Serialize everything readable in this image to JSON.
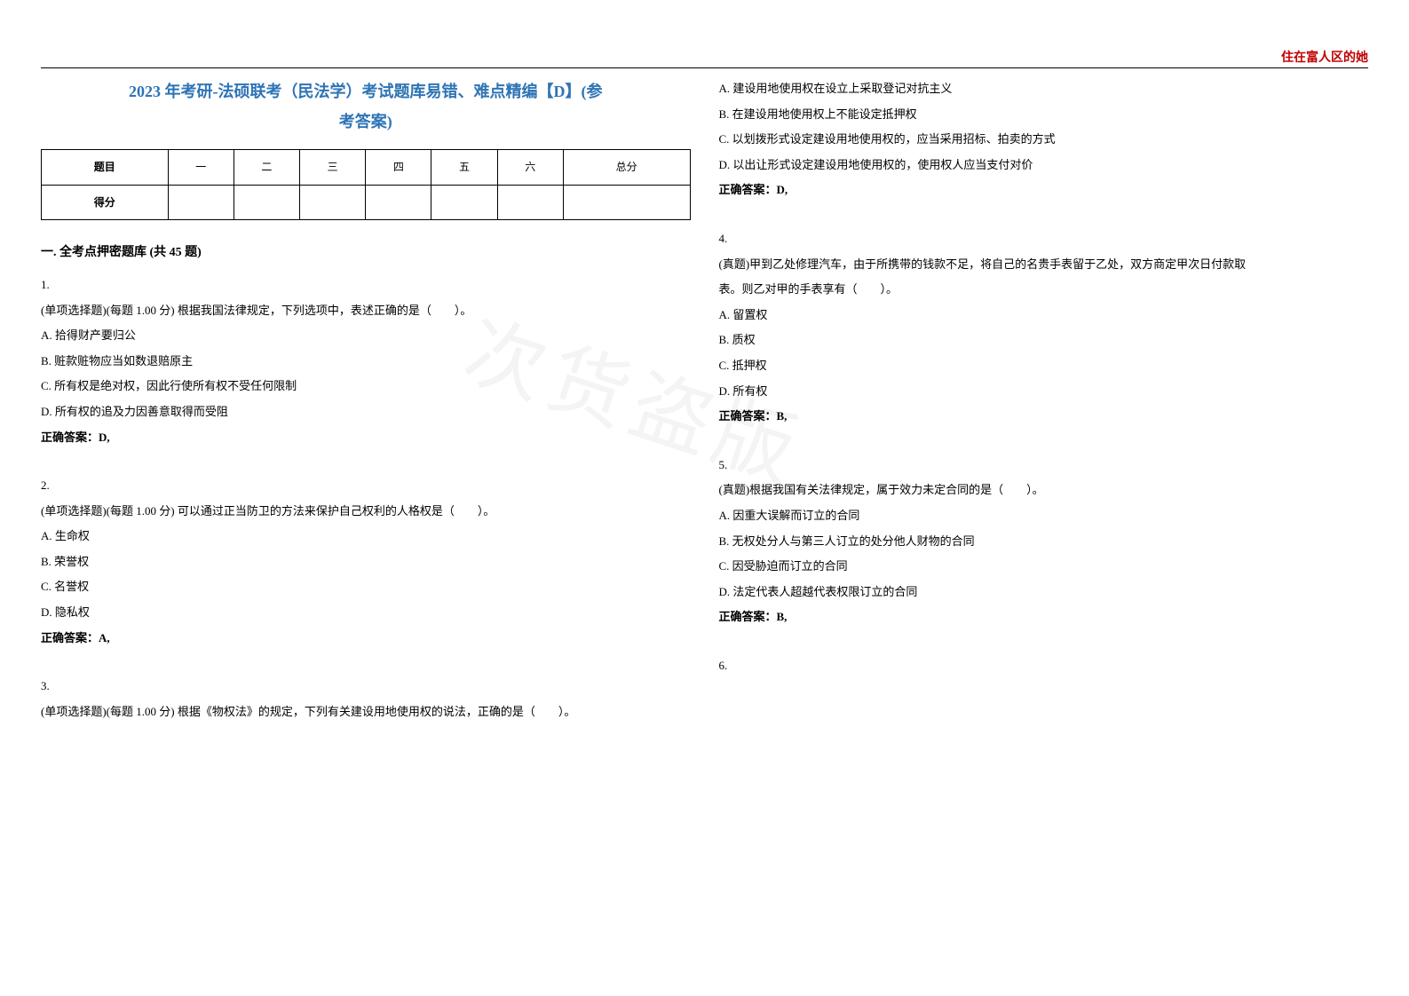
{
  "header_label": "住在富人区的她",
  "title_line1": "2023 年考研-法硕联考（民法学）考试题库易错、难点精编【D】(参",
  "title_line2": "考答案)",
  "score_table": {
    "row1": [
      "题目",
      "一",
      "二",
      "三",
      "四",
      "五",
      "六",
      "总分"
    ],
    "row2_head": "得分"
  },
  "section1_heading": "一. 全考点押密题库 (共 45 题)",
  "q1": {
    "num": "1.",
    "stem": "(单项选择题)(每题 1.00 分) 根据我国法律规定，下列选项中，表述正确的是（　　）。",
    "A": "A. 拾得财产要归公",
    "B": "B. 赃款赃物应当如数退赔原主",
    "C": "C. 所有权是绝对权，因此行使所有权不受任何限制",
    "D": "D. 所有权的追及力因善意取得而受阻",
    "ans": "正确答案：D,"
  },
  "q2": {
    "num": "2.",
    "stem": "(单项选择题)(每题 1.00 分) 可以通过正当防卫的方法来保护自己权利的人格权是（　　）。",
    "A": "A. 生命权",
    "B": "B. 荣誉权",
    "C": "C. 名誉权",
    "D": "D. 隐私权",
    "ans": "正确答案：A,"
  },
  "q3": {
    "num": "3.",
    "stem": "(单项选择题)(每题 1.00 分) 根据《物权法》的规定，下列有关建设用地使用权的说法，正确的是（　　）。",
    "A": "A. 建设用地使用权在设立上采取登记对抗主义",
    "B": "B. 在建设用地使用权上不能设定抵押权",
    "C": "C. 以划拨形式设定建设用地使用权的，应当采用招标、拍卖的方式",
    "D": "D. 以出让形式设定建设用地使用权的，使用权人应当支付对价",
    "ans": "正确答案：D,"
  },
  "q4": {
    "num": "4.",
    "stem1": "(真题)甲到乙处修理汽车，由于所携带的钱款不足，将自己的名贵手表留于乙处，双方商定甲次日付款取",
    "stem2": "表。则乙对甲的手表享有（　　）。",
    "A": "A. 留置权",
    "B": "B. 质权",
    "C": "C. 抵押权",
    "D": "D. 所有权",
    "ans": "正确答案：B,"
  },
  "q5": {
    "num": "5.",
    "stem": "(真题)根据我国有关法律规定，属于效力未定合同的是（　　）。",
    "A": "A. 因重大误解而订立的合同",
    "B": "B. 无权处分人与第三人订立的处分他人财物的合同",
    "C": "C. 因受胁迫而订立的合同",
    "D": "D. 法定代表人超越代表权限订立的合同",
    "ans": "正确答案：B,"
  },
  "q6": {
    "num": "6."
  },
  "watermark": "次货盗版"
}
